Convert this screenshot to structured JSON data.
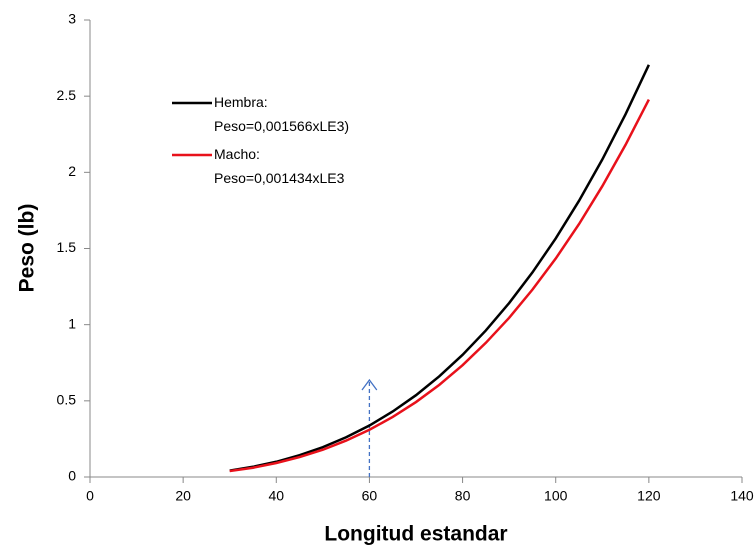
{
  "chart_data": {
    "type": "line",
    "x_label": "Longitud estandar",
    "y_label": "Peso (lb)",
    "x": [
      30,
      35,
      40,
      45,
      50,
      55,
      60,
      65,
      70,
      75,
      80,
      85,
      90,
      95,
      100,
      105,
      110,
      115,
      120
    ],
    "series": [
      {
        "name": "Hembra: Peso=0,001566xLE3)",
        "color": "#000000",
        "values": [
          0.042,
          0.067,
          0.1,
          0.143,
          0.196,
          0.261,
          0.338,
          0.43,
          0.537,
          0.661,
          0.802,
          0.962,
          1.142,
          1.343,
          1.566,
          1.813,
          2.084,
          2.382,
          2.706
        ]
      },
      {
        "name": "Macho: Peso=0,001434xLE3",
        "color": "#e8111b",
        "values": [
          0.039,
          0.061,
          0.092,
          0.131,
          0.179,
          0.239,
          0.31,
          0.394,
          0.492,
          0.605,
          0.734,
          0.881,
          1.045,
          1.23,
          1.434,
          1.66,
          1.909,
          2.181,
          2.478
        ]
      }
    ],
    "xlim": [
      0,
      140
    ],
    "xticks": [
      0,
      20,
      40,
      60,
      80,
      100,
      120,
      140
    ],
    "ylim": [
      0,
      3
    ],
    "yticks": [
      0,
      0.5,
      1,
      1.5,
      2,
      2.5,
      3
    ],
    "grid": false,
    "legend": "upper left"
  }
}
